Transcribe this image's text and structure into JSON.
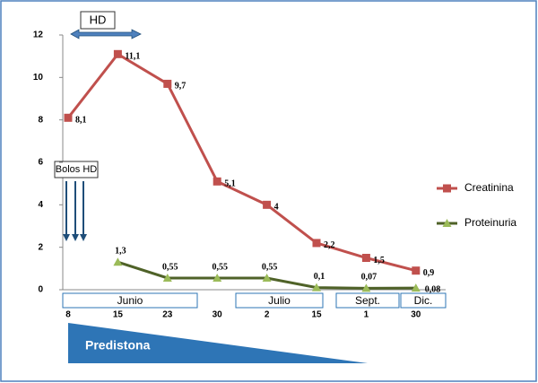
{
  "chart_data": {
    "type": "line",
    "categories": [
      "8",
      "15",
      "23",
      "30",
      "2",
      "15",
      "1",
      "30"
    ],
    "months": [
      "Junio",
      "Julio",
      "Sept.",
      "Dic."
    ],
    "annotations": {
      "hd": "HD",
      "bolos": "Bolos HD",
      "predistona": "Predistona"
    },
    "series": [
      {
        "name": "Creatinina",
        "color": "#c0504d",
        "marker": "square",
        "values": [
          8.1,
          11.1,
          9.7,
          5.1,
          4,
          2.2,
          1.5,
          0.9
        ],
        "value_labels": [
          "8,1",
          "11,1",
          "9,7",
          "5,1",
          "4",
          "2,2",
          "1,5",
          "0,9"
        ]
      },
      {
        "name": "Proteinuria",
        "color": "#4f6228",
        "marker_color": "#9bbb59",
        "marker": "triangle",
        "values": [
          null,
          1.3,
          0.55,
          0.55,
          0.55,
          0.1,
          0.07,
          0.08
        ],
        "value_labels": [
          null,
          "1,3",
          "0,55",
          "0,55",
          "0,55",
          "0,1",
          "0,07",
          "0,08"
        ]
      }
    ],
    "ylim": [
      0,
      12
    ],
    "yticks": [
      0,
      2,
      4,
      6,
      8,
      10,
      12
    ],
    "legend": "right"
  }
}
